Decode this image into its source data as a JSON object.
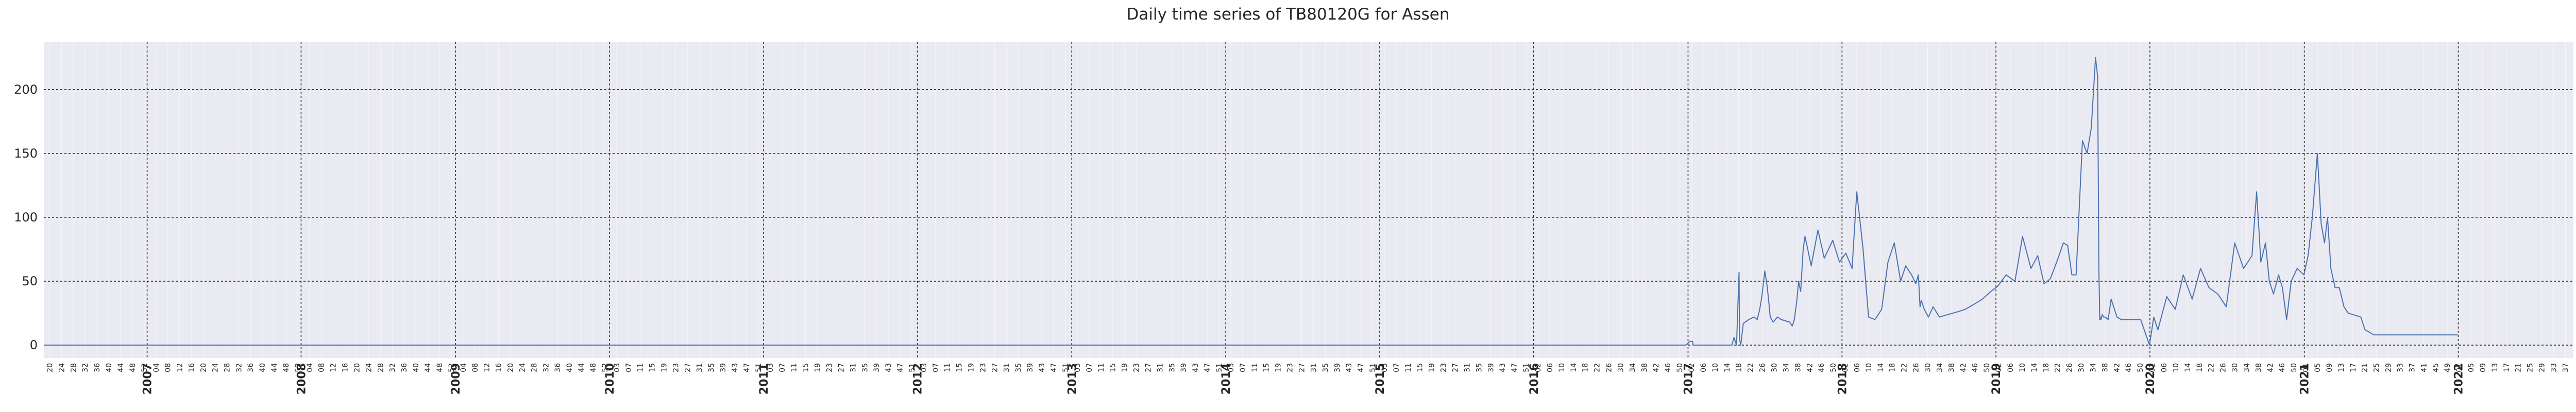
{
  "chart_data": {
    "type": "line",
    "title": "Daily time series of TB80120G for Assen",
    "xlabel": "",
    "ylabel": "",
    "x_type": "date",
    "xlim": [
      "2006-05-01",
      "2022-10-01"
    ],
    "ylim": [
      -10,
      237
    ],
    "yticks": [
      0,
      50,
      100,
      150,
      200
    ],
    "major_ticks": [
      "2007",
      "2008",
      "2009",
      "2010",
      "2011",
      "2012",
      "2013",
      "2014",
      "2015",
      "2016",
      "2017",
      "2018",
      "2019",
      "2020",
      "2021",
      "2022"
    ],
    "minor_tick_note": "ISO week numbers (every 4th week) between year ticks",
    "grid": true,
    "series": [
      {
        "color": "#4c72b0",
        "x": [
          "2006-05-01",
          "2016-12-27",
          "2017-01-05",
          "2017-01-12",
          "2017-01-13",
          "2017-04-15",
          "2017-04-20",
          "2017-04-26",
          "2017-05-02",
          "2017-05-03",
          "2017-05-06",
          "2017-05-12",
          "2017-05-25",
          "2017-06-06",
          "2017-06-14",
          "2017-06-20",
          "2017-06-25",
          "2017-07-02",
          "2017-07-08",
          "2017-07-15",
          "2017-07-22",
          "2017-08-01",
          "2017-08-10",
          "2017-08-20",
          "2017-08-30",
          "2017-09-05",
          "2017-09-10",
          "2017-09-16",
          "2017-09-20",
          "2017-09-25",
          "2017-10-01",
          "2017-10-05",
          "2017-10-10",
          "2017-10-20",
          "2017-11-05",
          "2017-11-20",
          "2017-12-10",
          "2017-12-26",
          "2018-01-10",
          "2018-01-25",
          "2018-02-05",
          "2018-02-20",
          "2018-03-05",
          "2018-03-20",
          "2018-04-05",
          "2018-04-20",
          "2018-05-05",
          "2018-05-20",
          "2018-06-01",
          "2018-06-15",
          "2018-06-25",
          "2018-07-01",
          "2018-07-05",
          "2018-07-08",
          "2018-07-15",
          "2018-07-25",
          "2018-08-05",
          "2018-08-20",
          "2018-09-10",
          "2018-10-01",
          "2018-10-20",
          "2018-11-10",
          "2018-11-30",
          "2018-12-20",
          "2019-01-05",
          "2019-01-25",
          "2019-02-15",
          "2019-03-05",
          "2019-03-25",
          "2019-04-10",
          "2019-04-25",
          "2019-05-10",
          "2019-05-25",
          "2019-06-10",
          "2019-06-20",
          "2019-06-30",
          "2019-07-10",
          "2019-07-25",
          "2019-08-05",
          "2019-08-15",
          "2019-08-25",
          "2019-08-30",
          "2019-09-02",
          "2019-09-04",
          "2019-09-05",
          "2019-09-07",
          "2019-09-10",
          "2019-09-13",
          "2019-09-17",
          "2019-09-24",
          "2019-10-01",
          "2019-10-15",
          "2019-10-25",
          "2019-11-05",
          "2019-11-20",
          "2019-12-10",
          "2019-12-31",
          "2020-01-10",
          "2020-01-20",
          "2020-02-10",
          "2020-03-01",
          "2020-03-20",
          "2020-04-10",
          "2020-04-30",
          "2020-05-20",
          "2020-06-10",
          "2020-06-30",
          "2020-07-20",
          "2020-08-10",
          "2020-08-30",
          "2020-09-10",
          "2020-09-20",
          "2020-10-01",
          "2020-10-10",
          "2020-10-20",
          "2020-11-01",
          "2020-11-10",
          "2020-11-20",
          "2020-12-01",
          "2020-12-15",
          "2020-12-31",
          "2021-01-10",
          "2021-01-20",
          "2021-02-01",
          "2021-02-10",
          "2021-02-18",
          "2021-02-25",
          "2021-03-05",
          "2021-03-15",
          "2021-03-25",
          "2021-04-05",
          "2021-04-15",
          "2021-04-25",
          "2021-05-05",
          "2021-05-15",
          "2021-05-25",
          "2021-06-05",
          "2021-06-15",
          "2021-06-25",
          "2021-07-10",
          "2021-07-25",
          "2021-08-05",
          "2021-08-12",
          "2021-08-20",
          "2021-09-10",
          "2021-10-01",
          "2021-10-10",
          "2021-11-01",
          "2021-12-01",
          "2021-12-31"
        ],
        "y": [
          0,
          0,
          3,
          3,
          0,
          0,
          6,
          0,
          57,
          5,
          0,
          17,
          20,
          22,
          20,
          28,
          38,
          58,
          45,
          22,
          18,
          22,
          20,
          19,
          18,
          15,
          20,
          35,
          50,
          42,
          75,
          85,
          78,
          62,
          90,
          68,
          82,
          65,
          72,
          60,
          120,
          75,
          22,
          20,
          28,
          65,
          80,
          50,
          62,
          55,
          48,
          55,
          30,
          35,
          28,
          22,
          30,
          22,
          24,
          26,
          28,
          32,
          36,
          42,
          46,
          55,
          50,
          85,
          60,
          70,
          48,
          52,
          65,
          80,
          78,
          55,
          55,
          160,
          150,
          170,
          225,
          210,
          60,
          20,
          22,
          20,
          24,
          22,
          22,
          20,
          36,
          22,
          20,
          20,
          20,
          20,
          0,
          22,
          12,
          38,
          28,
          55,
          36,
          60,
          45,
          40,
          30,
          80,
          60,
          70,
          120,
          65,
          80,
          50,
          40,
          55,
          45,
          20,
          50,
          60,
          55,
          70,
          100,
          150,
          95,
          80,
          100,
          60,
          45,
          45,
          30,
          25,
          24,
          23,
          22,
          12,
          10,
          8,
          8,
          8,
          8,
          8,
          8,
          8,
          8,
          8,
          8,
          8,
          8,
          8
        ]
      }
    ]
  }
}
